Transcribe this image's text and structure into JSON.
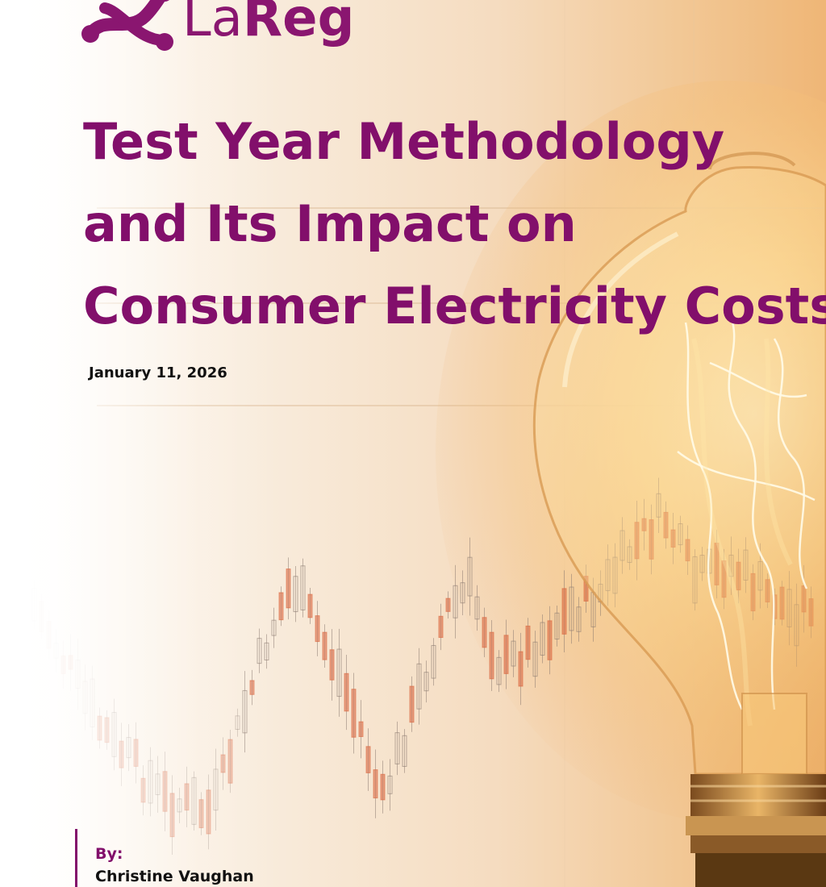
{
  "brand": {
    "name_light": "La",
    "name_bold": "Reg",
    "color": "#820f6b"
  },
  "title_lines": [
    "Test Year Methodology",
    "and Its Impact on",
    "Consumer Electricity Costs"
  ],
  "date": "January 11, 2026",
  "byline": {
    "label": "By:",
    "author": "Christine Vaughan"
  },
  "background": {
    "motif": "light-bulb-over-candlestick-chart",
    "colors": {
      "warm": "#efb676",
      "candle_up": "#d9623b",
      "candle_outline": "#8a7a70",
      "bulb_glow": "#fff3c4"
    }
  }
}
